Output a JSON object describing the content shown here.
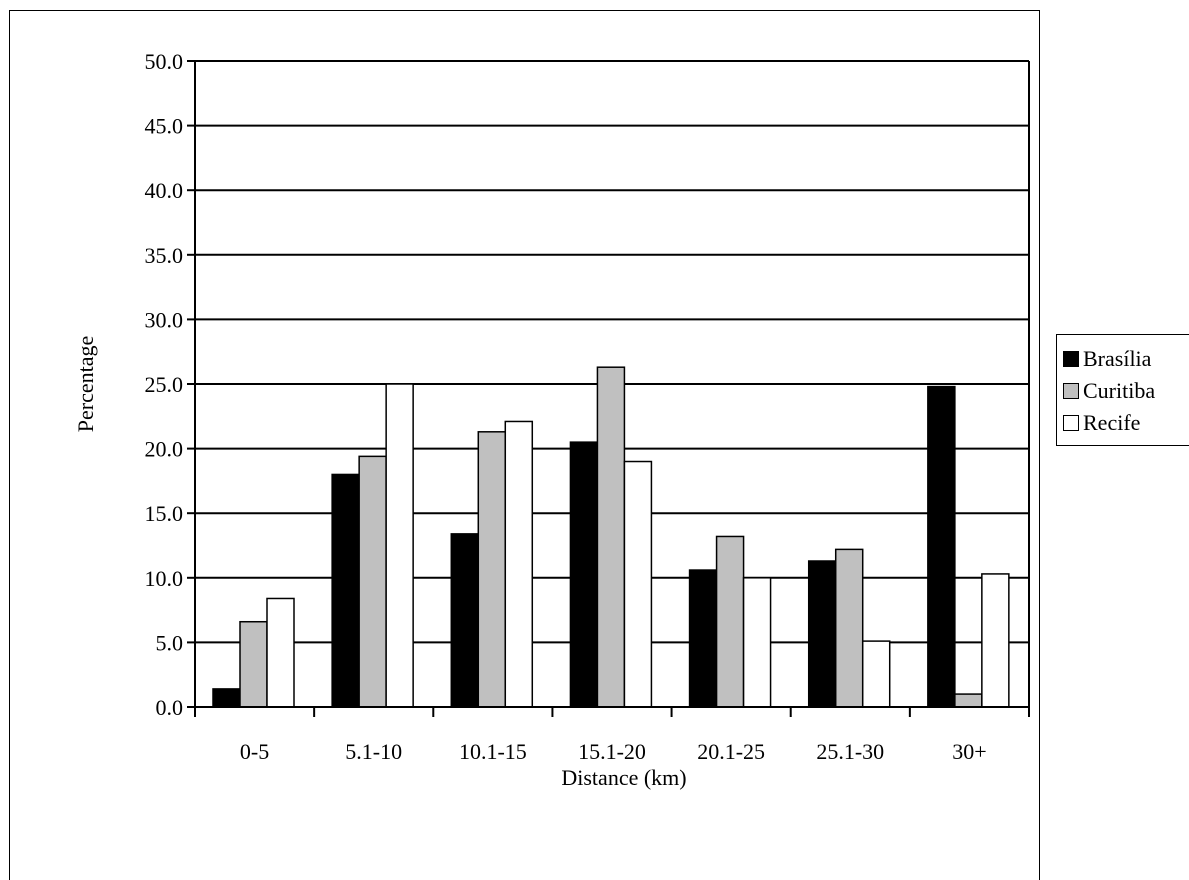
{
  "chart_data": {
    "type": "bar",
    "title": "",
    "xlabel": "Distance (km)",
    "ylabel": "Percentage",
    "ylim": [
      0,
      50
    ],
    "yticks": [
      "0.0",
      "5.0",
      "10.0",
      "15.0",
      "20.0",
      "25.0",
      "30.0",
      "35.0",
      "40.0",
      "45.0",
      "50.0"
    ],
    "grid": true,
    "legend_position": "right",
    "categories": [
      "0-5",
      "5.1-10",
      "10.1-15",
      "15.1-20",
      "20.1-25",
      "25.1-30",
      "30+"
    ],
    "series": [
      {
        "name": "Brasília",
        "color": "#000000",
        "values": [
          1.4,
          18.0,
          13.4,
          20.5,
          10.6,
          11.3,
          24.8
        ]
      },
      {
        "name": "Curitiba",
        "color": "#c0c0c0",
        "values": [
          6.6,
          19.4,
          21.3,
          26.3,
          13.2,
          12.2,
          1.0
        ]
      },
      {
        "name": "Recife",
        "color": "#ffffff",
        "values": [
          8.4,
          25.0,
          22.1,
          19.0,
          10.0,
          5.1,
          10.3
        ]
      }
    ]
  }
}
